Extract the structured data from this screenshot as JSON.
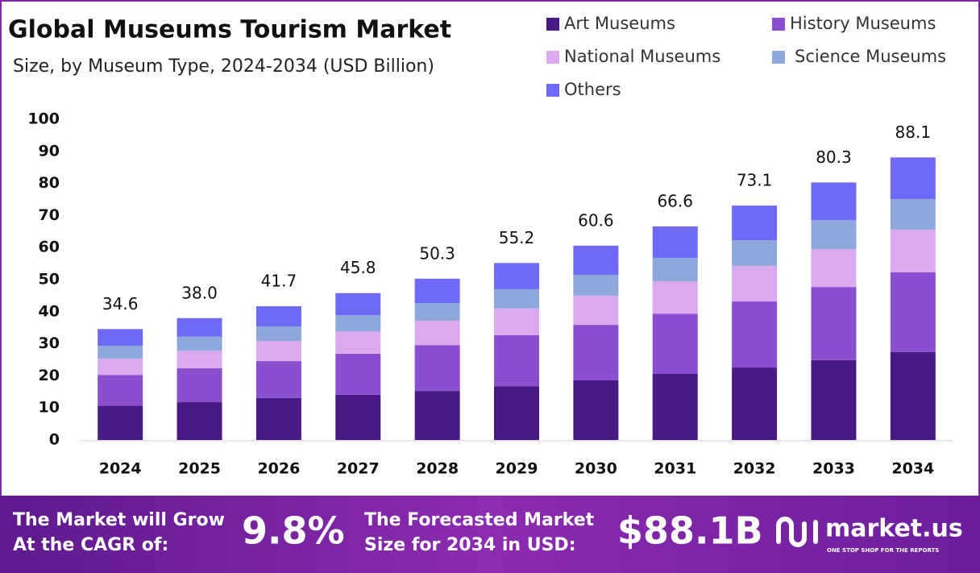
{
  "chart_data": {
    "type": "stacked-bar",
    "title": "Global Museums Tourism Market",
    "subtitle": "Size, by Museum Type, 2024-2034 (USD Billion)",
    "categories": [
      "2024",
      "2025",
      "2026",
      "2027",
      "2028",
      "2029",
      "2030",
      "2031",
      "2032",
      "2033",
      "2034"
    ],
    "series": [
      {
        "name": "Art Museums",
        "color": "#4a1a84",
        "values": [
          10.7,
          11.8,
          13.1,
          14.1,
          15.3,
          16.8,
          18.6,
          20.6,
          22.6,
          24.9,
          27.4
        ]
      },
      {
        "name": "History Museums",
        "color": "#8a4fcf",
        "values": [
          9.6,
          10.6,
          11.5,
          12.8,
          14.3,
          15.9,
          17.3,
          18.8,
          20.6,
          22.8,
          24.9
        ]
      },
      {
        "name": "National Museums",
        "color": "#d9aaee",
        "values": [
          5.1,
          5.5,
          6.3,
          7.0,
          7.6,
          8.3,
          9.1,
          10.1,
          11.1,
          11.8,
          13.3
        ]
      },
      {
        "name": "Science Museums",
        "color": "#8fa8dc",
        "values": [
          4.0,
          4.3,
          4.5,
          5.0,
          5.5,
          6.0,
          6.5,
          7.3,
          8.0,
          9.1,
          9.5
        ]
      },
      {
        "name": "Others",
        "color": "#6f6af5",
        "values": [
          5.2,
          5.8,
          6.3,
          6.9,
          7.6,
          8.2,
          9.1,
          9.8,
          10.8,
          11.7,
          13.0
        ]
      }
    ],
    "totals": [
      34.6,
      38.0,
      41.7,
      45.8,
      50.3,
      55.2,
      60.6,
      66.6,
      73.1,
      80.3,
      88.1
    ],
    "total_labels": [
      "34.6",
      "38.0",
      "41.7",
      "45.8",
      "50.3",
      "55.2",
      "60.6",
      "66.6",
      "73.1",
      "80.3",
      "88.1"
    ],
    "ylim": [
      0,
      100
    ],
    "yticks": [
      0,
      10,
      20,
      30,
      40,
      50,
      60,
      70,
      80,
      90,
      100
    ],
    "legend": "top-right"
  },
  "footer": {
    "cagr_text": [
      "The Market will Grow",
      "At the CAGR of:"
    ],
    "cagr_value": "9.8%",
    "forecast_text": [
      "The Forecasted Market",
      "Size for 2034 in USD:"
    ],
    "forecast_value": "$88.1B",
    "brand": "market.us",
    "tagline": "ONE STOP SHOP FOR THE REPORTS"
  }
}
